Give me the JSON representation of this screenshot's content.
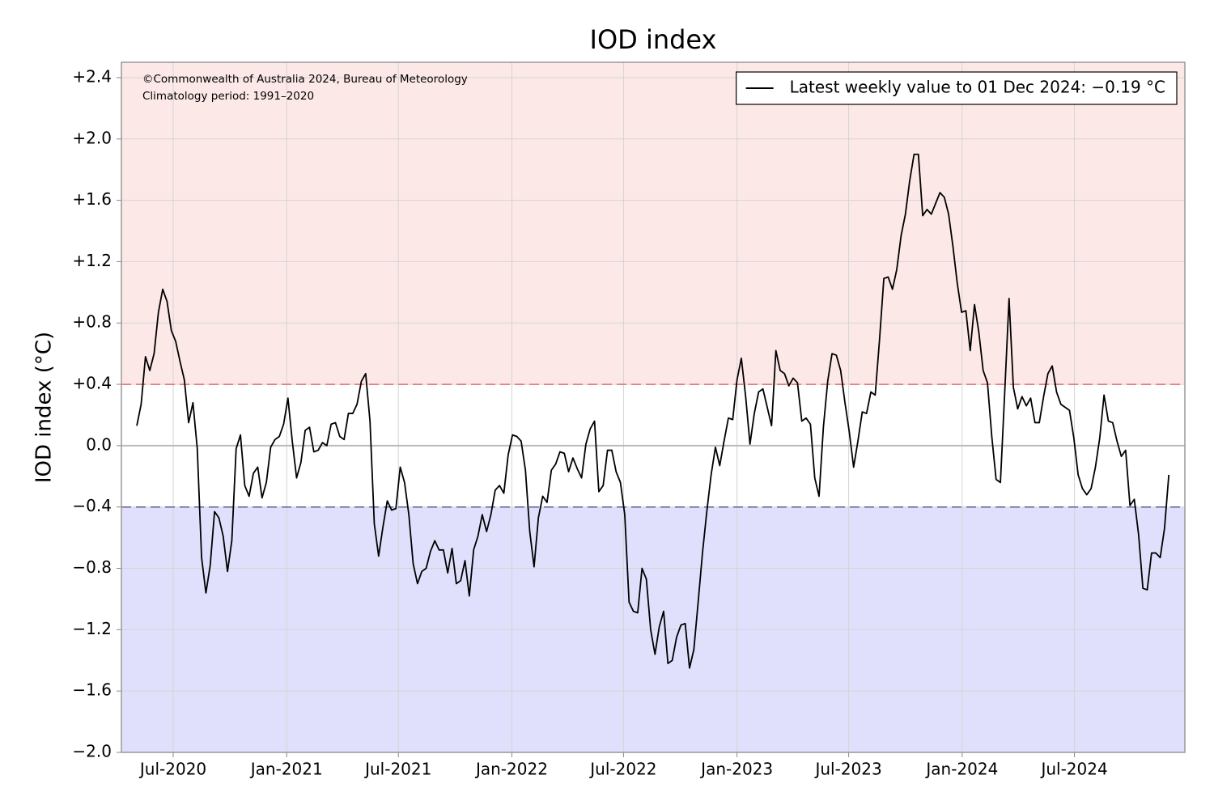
{
  "chart_data": {
    "type": "line",
    "title": "IOD index",
    "ylabel": "IOD index (°C)",
    "annotations": [
      "©Commonwealth of Australia 2024, Bureau of Meteorology",
      "Climatology period: 1991–2020"
    ],
    "xlim": [
      "2020-04-08",
      "2024-12-27"
    ],
    "ylim": [
      -2.0,
      2.5
    ],
    "xticks": [
      {
        "value": "2020-07-01",
        "label": "Jul-2020"
      },
      {
        "value": "2021-01-01",
        "label": "Jan-2021"
      },
      {
        "value": "2021-07-01",
        "label": "Jul-2021"
      },
      {
        "value": "2022-01-01",
        "label": "Jan-2022"
      },
      {
        "value": "2022-07-01",
        "label": "Jul-2022"
      },
      {
        "value": "2023-01-01",
        "label": "Jan-2023"
      },
      {
        "value": "2023-07-01",
        "label": "Jul-2023"
      },
      {
        "value": "2024-01-01",
        "label": "Jan-2024"
      },
      {
        "value": "2024-07-01",
        "label": "Jul-2024"
      }
    ],
    "yticks": [
      {
        "value": 2.4,
        "label": "+2.4"
      },
      {
        "value": 2.0,
        "label": "+2.0"
      },
      {
        "value": 1.6,
        "label": "+1.6"
      },
      {
        "value": 1.2,
        "label": "+1.2"
      },
      {
        "value": 0.8,
        "label": "+0.8"
      },
      {
        "value": 0.4,
        "label": "+0.4"
      },
      {
        "value": 0,
        "label": "0.0"
      },
      {
        "value": -0.4,
        "label": "−0.4"
      },
      {
        "value": -0.8,
        "label": "−0.8"
      },
      {
        "value": -1.2,
        "label": "−1.2"
      },
      {
        "value": -1.6,
        "label": "−1.6"
      },
      {
        "value": -2.0,
        "label": "−2.0"
      }
    ],
    "grid": true,
    "legend": "upper right",
    "thresholds": [
      {
        "value": 0.4,
        "color": "#e86a6a",
        "fill": "#fde8e8",
        "side": "above"
      },
      {
        "value": -0.4,
        "color": "#5c5c9c",
        "fill": "#e0e0fc",
        "side": "below"
      }
    ],
    "x": [
      "2020-05-03",
      "2020-05-10",
      "2020-05-17",
      "2020-05-24",
      "2020-05-31",
      "2020-06-07",
      "2020-06-14",
      "2020-06-21",
      "2020-06-28",
      "2020-07-05",
      "2020-07-12",
      "2020-07-19",
      "2020-07-26",
      "2020-08-02",
      "2020-08-09",
      "2020-08-16",
      "2020-08-23",
      "2020-08-30",
      "2020-09-06",
      "2020-09-13",
      "2020-09-20",
      "2020-09-27",
      "2020-10-04",
      "2020-10-11",
      "2020-10-18",
      "2020-10-25",
      "2020-11-01",
      "2020-11-08",
      "2020-11-15",
      "2020-11-22",
      "2020-11-29",
      "2020-12-06",
      "2020-12-13",
      "2020-12-20",
      "2020-12-27",
      "2021-01-03",
      "2021-01-10",
      "2021-01-17",
      "2021-01-24",
      "2021-01-31",
      "2021-02-07",
      "2021-02-14",
      "2021-02-21",
      "2021-02-28",
      "2021-03-07",
      "2021-03-14",
      "2021-03-21",
      "2021-03-28",
      "2021-04-04",
      "2021-04-11",
      "2021-04-18",
      "2021-04-25",
      "2021-05-02",
      "2021-05-09",
      "2021-05-16",
      "2021-05-23",
      "2021-05-30",
      "2021-06-06",
      "2021-06-13",
      "2021-06-20",
      "2021-06-27",
      "2021-07-04",
      "2021-07-11",
      "2021-07-18",
      "2021-07-25",
      "2021-08-01",
      "2021-08-08",
      "2021-08-15",
      "2021-08-22",
      "2021-08-29",
      "2021-09-05",
      "2021-09-12",
      "2021-09-19",
      "2021-09-26",
      "2021-10-03",
      "2021-10-10",
      "2021-10-17",
      "2021-10-24",
      "2021-10-31",
      "2021-11-07",
      "2021-11-14",
      "2021-11-21",
      "2021-11-28",
      "2021-12-05",
      "2021-12-12",
      "2021-12-19",
      "2021-12-26",
      "2022-01-02",
      "2022-01-09",
      "2022-01-16",
      "2022-01-23",
      "2022-01-30",
      "2022-02-06",
      "2022-02-13",
      "2022-02-20",
      "2022-02-27",
      "2022-03-06",
      "2022-03-13",
      "2022-03-20",
      "2022-03-27",
      "2022-04-03",
      "2022-04-10",
      "2022-04-17",
      "2022-04-24",
      "2022-05-01",
      "2022-05-08",
      "2022-05-15",
      "2022-05-22",
      "2022-05-29",
      "2022-06-05",
      "2022-06-12",
      "2022-06-19",
      "2022-06-26",
      "2022-07-03",
      "2022-07-10",
      "2022-07-17",
      "2022-07-24",
      "2022-07-31",
      "2022-08-07",
      "2022-08-14",
      "2022-08-21",
      "2022-08-28",
      "2022-09-04",
      "2022-09-11",
      "2022-09-18",
      "2022-09-25",
      "2022-10-02",
      "2022-10-09",
      "2022-10-16",
      "2022-10-23",
      "2022-10-30",
      "2022-11-06",
      "2022-11-13",
      "2022-11-20",
      "2022-11-27",
      "2022-12-04",
      "2022-12-11",
      "2022-12-18",
      "2022-12-25",
      "2023-01-01",
      "2023-01-08",
      "2023-01-15",
      "2023-01-22",
      "2023-01-29",
      "2023-02-05",
      "2023-02-12",
      "2023-02-19",
      "2023-02-26",
      "2023-03-05",
      "2023-03-12",
      "2023-03-19",
      "2023-03-26",
      "2023-04-02",
      "2023-04-09",
      "2023-04-16",
      "2023-04-23",
      "2023-04-30",
      "2023-05-07",
      "2023-05-14",
      "2023-05-21",
      "2023-05-28",
      "2023-06-04",
      "2023-06-11",
      "2023-06-18",
      "2023-06-25",
      "2023-07-02",
      "2023-07-09",
      "2023-07-16",
      "2023-07-23",
      "2023-07-30",
      "2023-08-06",
      "2023-08-13",
      "2023-08-20",
      "2023-08-27",
      "2023-09-03",
      "2023-09-10",
      "2023-09-17",
      "2023-09-24",
      "2023-10-01",
      "2023-10-08",
      "2023-10-15",
      "2023-10-22",
      "2023-10-29",
      "2023-11-05",
      "2023-11-12",
      "2023-11-19",
      "2023-11-26",
      "2023-12-03",
      "2023-12-10",
      "2023-12-17",
      "2023-12-24",
      "2023-12-31",
      "2024-01-07",
      "2024-01-14",
      "2024-01-21",
      "2024-01-28",
      "2024-02-04",
      "2024-02-11",
      "2024-02-18",
      "2024-02-25",
      "2024-03-03",
      "2024-03-10",
      "2024-03-17",
      "2024-03-24",
      "2024-03-31",
      "2024-04-07",
      "2024-04-14",
      "2024-04-21",
      "2024-04-28",
      "2024-05-05",
      "2024-05-12",
      "2024-05-19",
      "2024-05-26",
      "2024-06-02",
      "2024-06-09",
      "2024-06-16",
      "2024-06-23",
      "2024-06-30",
      "2024-07-07",
      "2024-07-14",
      "2024-07-21",
      "2024-07-28",
      "2024-08-04",
      "2024-08-11",
      "2024-08-18",
      "2024-08-25",
      "2024-09-01",
      "2024-09-08",
      "2024-09-15",
      "2024-09-22",
      "2024-09-29",
      "2024-10-06",
      "2024-10-13",
      "2024-10-20",
      "2024-10-27",
      "2024-11-03",
      "2024-11-10",
      "2024-11-17",
      "2024-11-24",
      "2024-12-01"
    ],
    "series": [
      {
        "name": "Latest weekly value to 01 Dec 2024: −0.19 °C",
        "color": "#000000",
        "values": [
          0.13,
          0.27,
          0.58,
          0.49,
          0.6,
          0.87,
          1.02,
          0.94,
          0.75,
          0.68,
          0.55,
          0.43,
          0.15,
          0.28,
          -0.02,
          -0.73,
          -0.96,
          -0.78,
          -0.43,
          -0.47,
          -0.59,
          -0.82,
          -0.62,
          -0.02,
          0.07,
          -0.26,
          -0.33,
          -0.18,
          -0.14,
          -0.34,
          -0.24,
          -0.01,
          0.04,
          0.06,
          0.14,
          0.31,
          0.03,
          -0.21,
          -0.11,
          0.1,
          0.12,
          -0.04,
          -0.03,
          0.02,
          0.0,
          0.14,
          0.15,
          0.06,
          0.04,
          0.21,
          0.21,
          0.27,
          0.42,
          0.47,
          0.16,
          -0.51,
          -0.72,
          -0.53,
          -0.36,
          -0.42,
          -0.41,
          -0.14,
          -0.24,
          -0.45,
          -0.77,
          -0.9,
          -0.82,
          -0.8,
          -0.69,
          -0.62,
          -0.68,
          -0.68,
          -0.83,
          -0.67,
          -0.9,
          -0.88,
          -0.75,
          -0.98,
          -0.68,
          -0.59,
          -0.45,
          -0.56,
          -0.45,
          -0.29,
          -0.26,
          -0.31,
          -0.06,
          0.07,
          0.06,
          0.03,
          -0.16,
          -0.56,
          -0.79,
          -0.47,
          -0.33,
          -0.37,
          -0.16,
          -0.12,
          -0.04,
          -0.05,
          -0.17,
          -0.08,
          -0.15,
          -0.21,
          0.01,
          0.11,
          0.16,
          -0.3,
          -0.26,
          -0.03,
          -0.03,
          -0.17,
          -0.24,
          -0.45,
          -1.02,
          -1.08,
          -1.09,
          -0.8,
          -0.87,
          -1.2,
          -1.36,
          -1.18,
          -1.08,
          -1.42,
          -1.4,
          -1.25,
          -1.17,
          -1.16,
          -1.45,
          -1.33,
          -1.02,
          -0.7,
          -0.43,
          -0.19,
          -0.01,
          -0.13,
          0.03,
          0.18,
          0.17,
          0.43,
          0.57,
          0.32,
          0.01,
          0.21,
          0.35,
          0.37,
          0.25,
          0.13,
          0.62,
          0.49,
          0.47,
          0.39,
          0.44,
          0.41,
          0.16,
          0.18,
          0.14,
          -0.21,
          -0.33,
          0.12,
          0.42,
          0.6,
          0.59,
          0.49,
          0.28,
          0.09,
          -0.14,
          0.03,
          0.22,
          0.21,
          0.35,
          0.33,
          0.69,
          1.09,
          1.1,
          1.02,
          1.15,
          1.37,
          1.51,
          1.73,
          1.9,
          1.9,
          1.5,
          1.54,
          1.51,
          1.58,
          1.65,
          1.62,
          1.51,
          1.3,
          1.06,
          0.87,
          0.88,
          0.62,
          0.92,
          0.74,
          0.49,
          0.41,
          0.06,
          -0.22,
          -0.24,
          0.35,
          0.96,
          0.38,
          0.24,
          0.32,
          0.26,
          0.31,
          0.15,
          0.15,
          0.32,
          0.47,
          0.52,
          0.35,
          0.27,
          0.25,
          0.23,
          0.05,
          -0.19,
          -0.28,
          -0.32,
          -0.28,
          -0.14,
          0.05,
          0.33,
          0.16,
          0.15,
          0.03,
          -0.07,
          -0.03,
          -0.39,
          -0.35,
          -0.58,
          -0.93,
          -0.94,
          -0.7,
          -0.7,
          -0.73,
          -0.54,
          -0.19
        ]
      }
    ]
  }
}
